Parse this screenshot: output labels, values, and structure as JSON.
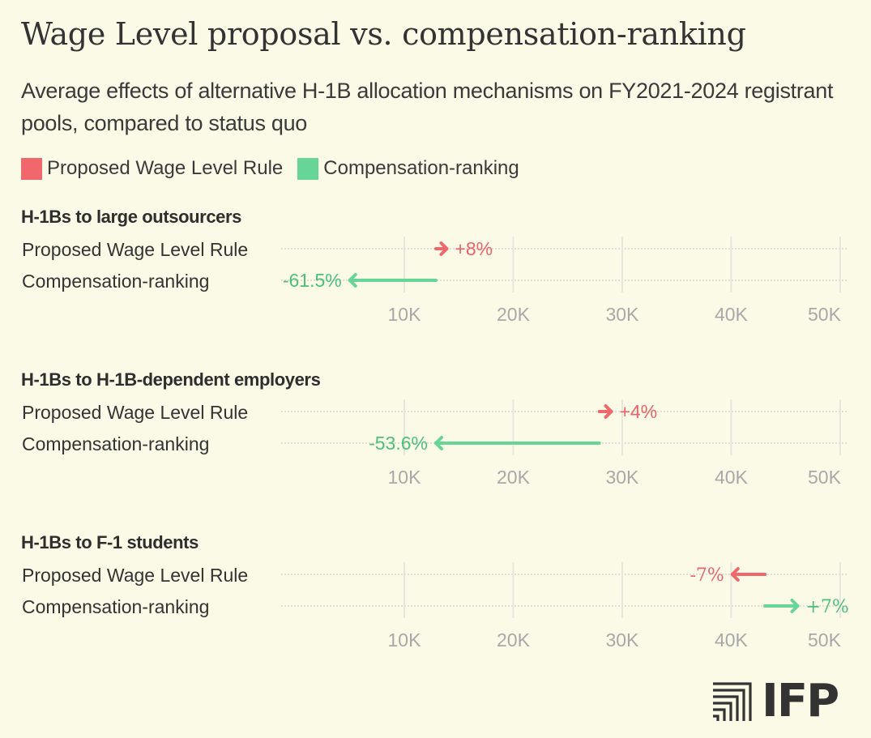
{
  "header": {
    "title": "Wage Level proposal vs. compensation-ranking",
    "subtitle": "Average effects of alternative H-1B allocation mechanisms on FY2021-2024 registrant pools, compared to status quo"
  },
  "legend": [
    {
      "label": "Proposed Wage Level Rule",
      "color": "#F0686B"
    },
    {
      "label": "Compensation-ranking",
      "color": "#66D595"
    }
  ],
  "colors": {
    "background": "#FBFAE7",
    "proposed_line": "#F0686B",
    "proposed_text": "#E8636A",
    "compensation_line": "#66D595",
    "compensation_text": "#4CBF7A",
    "gridline": "#E6E6E1",
    "tick_text": "#A8A8A8"
  },
  "logo": {
    "text": "IFP",
    "icon": "ifp-logo-icon"
  },
  "chart_data": [
    {
      "type": "arrow",
      "title": "H-1Bs to large outsourcers",
      "xlabel": "",
      "ylabel": "",
      "xlim": [
        -1.3,
        50.6
      ],
      "ticks": [
        10,
        20,
        30,
        40,
        50
      ],
      "tick_labels": [
        "10K",
        "20K",
        "30K",
        "40K",
        "50K"
      ],
      "grid": true,
      "status_quo": 12.9,
      "series": [
        {
          "name": "Proposed Wage Level Rule",
          "from": 12.9,
          "to": 13.9,
          "label": "+8%",
          "change_pct": 8
        },
        {
          "name": "Compensation-ranking",
          "from": 12.9,
          "to": 5.0,
          "label": "-61.5%",
          "change_pct": -61.5
        }
      ]
    },
    {
      "type": "arrow",
      "title": "H-1Bs to H-1B-dependent employers",
      "xlabel": "",
      "ylabel": "",
      "xlim": [
        -1.3,
        50.6
      ],
      "ticks": [
        10,
        20,
        30,
        40,
        50
      ],
      "tick_labels": [
        "10K",
        "20K",
        "30K",
        "40K",
        "50K"
      ],
      "grid": true,
      "status_quo": 27.9,
      "series": [
        {
          "name": "Proposed Wage Level Rule",
          "from": 27.9,
          "to": 29.0,
          "label": "+4%",
          "change_pct": 4
        },
        {
          "name": "Compensation-ranking",
          "from": 27.9,
          "to": 12.9,
          "label": "-53.6%",
          "change_pct": -53.6
        }
      ]
    },
    {
      "type": "arrow",
      "title": "H-1Bs to F-1 students",
      "xlabel": "",
      "ylabel": "",
      "xlim": [
        -1.3,
        50.6
      ],
      "ticks": [
        10,
        20,
        30,
        40,
        50
      ],
      "tick_labels": [
        "10K",
        "20K",
        "30K",
        "40K",
        "50K"
      ],
      "grid": true,
      "status_quo": 43.1,
      "series": [
        {
          "name": "Proposed Wage Level Rule",
          "from": 43.1,
          "to": 40.1,
          "label": "-7%",
          "change_pct": -7
        },
        {
          "name": "Compensation-ranking",
          "from": 43.1,
          "to": 46.1,
          "label": "+7%",
          "change_pct": 7
        }
      ]
    }
  ]
}
